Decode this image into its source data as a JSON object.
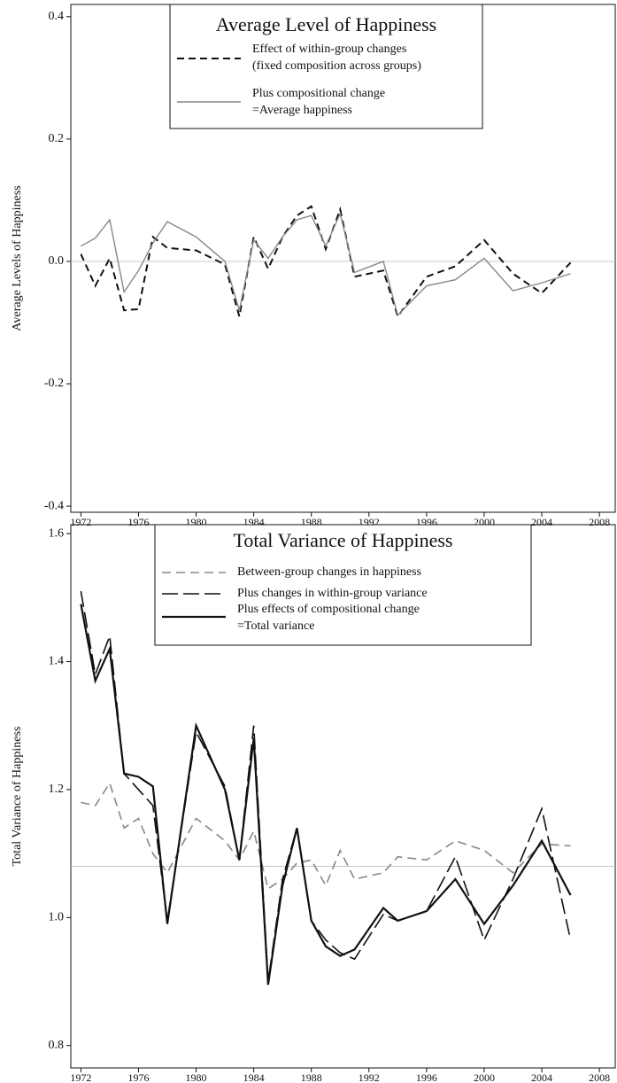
{
  "chart_data": [
    {
      "type": "line",
      "title": "Average Level of Happiness",
      "ylabel": "Average Levels of Happiness",
      "x": [
        1972,
        1973,
        1974,
        1975,
        1976,
        1977,
        1978,
        1980,
        1982,
        1983,
        1984,
        1985,
        1986,
        1987,
        1988,
        1989,
        1990,
        1991,
        1993,
        1994,
        1996,
        1998,
        2000,
        2002,
        2004,
        2006
      ],
      "series": [
        {
          "name": [
            "Effect of within-group changes",
            "(fixed composition across groups)"
          ],
          "color": "#111111",
          "dash": "8,5",
          "width": 2,
          "values": [
            0.012,
            -0.04,
            0.005,
            -0.08,
            -0.078,
            0.04,
            0.022,
            0.018,
            -0.005,
            -0.09,
            0.04,
            -0.012,
            0.04,
            0.075,
            0.09,
            0.02,
            0.085,
            -0.025,
            -0.015,
            -0.09,
            -0.025,
            -0.008,
            0.035,
            -0.02,
            -0.052,
            -0.002
          ]
        },
        {
          "name": [
            "Plus compositional change",
            "=Average happiness"
          ],
          "color": "#888888",
          "dash": "none",
          "width": 1.4,
          "values": [
            0.025,
            0.038,
            0.068,
            -0.05,
            -0.015,
            0.03,
            0.065,
            0.04,
            0.0,
            -0.08,
            0.035,
            0.005,
            0.04,
            0.068,
            0.075,
            0.025,
            0.078,
            -0.018,
            0.0,
            -0.088,
            -0.04,
            -0.03,
            0.005,
            -0.048,
            -0.035,
            -0.02
          ]
        }
      ],
      "xlim": [
        1971.3,
        2009.1
      ],
      "xticks": [
        1972,
        1976,
        1980,
        1984,
        1988,
        1992,
        1996,
        2000,
        2004,
        2008
      ],
      "ylim": [
        -0.41,
        0.42
      ],
      "yticks": [
        0.4,
        0.2,
        {
          "value": 0,
          "label": "0.0"
        },
        -0.2,
        -0.4
      ],
      "refline": 0
    },
    {
      "type": "line",
      "title": "Total Variance of Happiness",
      "ylabel": "Total Variance of Happiness",
      "x": [
        1972,
        1973,
        1974,
        1975,
        1976,
        1977,
        1978,
        1980,
        1982,
        1983,
        1984,
        1985,
        1986,
        1987,
        1988,
        1989,
        1990,
        1991,
        1993,
        1994,
        1996,
        1998,
        2000,
        2002,
        2004,
        2006
      ],
      "series": [
        {
          "name": [
            "Between-group changes in happiness"
          ],
          "color": "#888888",
          "dash": "10,6",
          "width": 1.6,
          "values": [
            1.18,
            1.175,
            1.21,
            1.14,
            1.155,
            1.1,
            1.07,
            1.155,
            1.12,
            1.09,
            1.135,
            1.045,
            1.06,
            1.085,
            1.09,
            1.05,
            1.105,
            1.06,
            1.07,
            1.095,
            1.09,
            1.12,
            1.105,
            1.07,
            1.115,
            1.112
          ]
        },
        {
          "name": [
            "Plus changes in within-group variance"
          ],
          "color": "#111111",
          "dash": "18,6",
          "width": 1.6,
          "values": [
            1.51,
            1.38,
            1.44,
            1.225,
            1.2,
            1.175,
            0.995,
            1.29,
            1.205,
            1.09,
            1.3,
            0.9,
            1.06,
            1.14,
            0.995,
            0.965,
            0.945,
            0.935,
            1.005,
            0.995,
            1.01,
            1.095,
            0.965,
            1.06,
            1.17,
            0.965
          ]
        },
        {
          "name": [
            "Plus effects of compositional change",
            "=Total variance"
          ],
          "color": "#111111",
          "dash": "none",
          "width": 2.2,
          "values": [
            1.49,
            1.37,
            1.42,
            1.225,
            1.22,
            1.205,
            0.99,
            1.3,
            1.2,
            1.09,
            1.28,
            0.895,
            1.05,
            1.14,
            0.995,
            0.955,
            0.94,
            0.95,
            1.015,
            0.995,
            1.01,
            1.06,
            0.99,
            1.05,
            1.12,
            1.035
          ]
        }
      ],
      "xlim": [
        1971.3,
        2009.1
      ],
      "xticks": [
        1972,
        1976,
        1980,
        1984,
        1988,
        1992,
        1996,
        2000,
        2004,
        2008
      ],
      "ylim": [
        0.765,
        1.614
      ],
      "yticks": [
        1.6,
        1.4,
        1.2,
        {
          "value": 1,
          "label": "1.0"
        },
        0.8
      ],
      "refline": 1.08
    }
  ]
}
